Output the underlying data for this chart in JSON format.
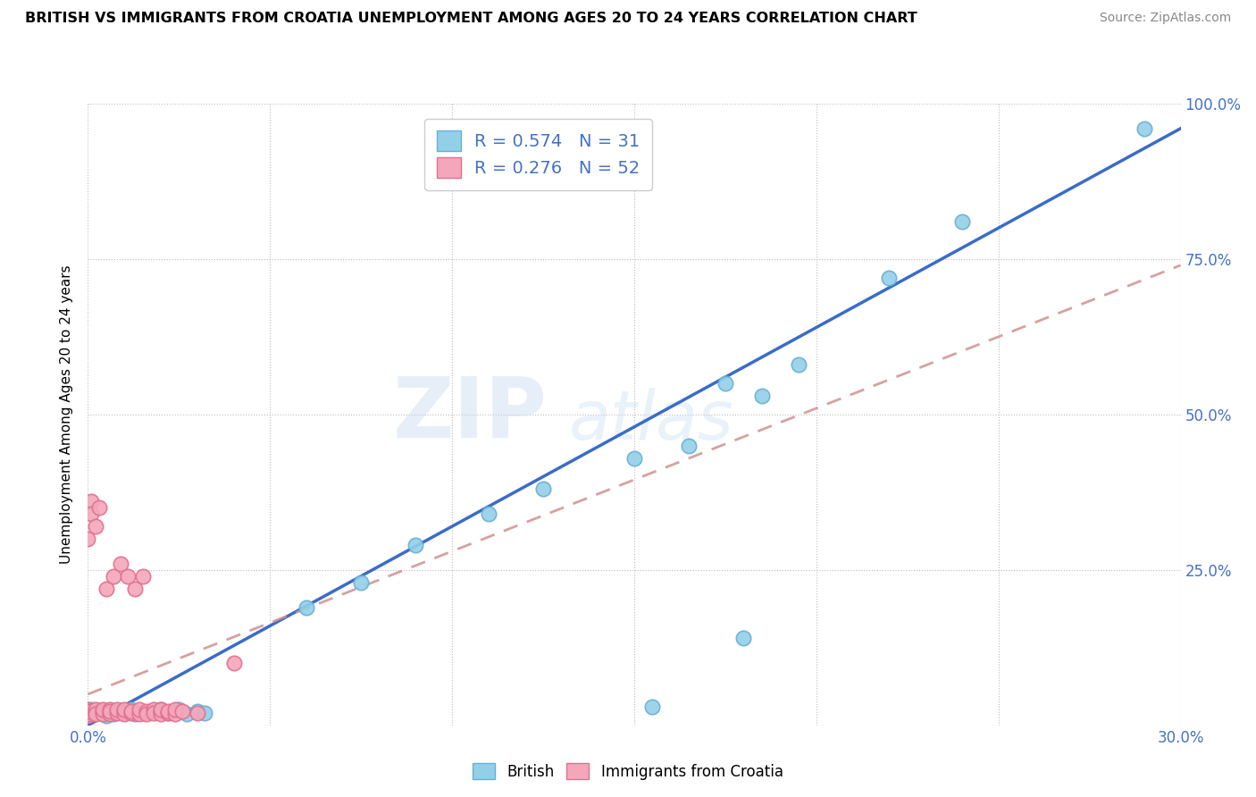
{
  "title": "BRITISH VS IMMIGRANTS FROM CROATIA UNEMPLOYMENT AMONG AGES 20 TO 24 YEARS CORRELATION CHART",
  "source": "Source: ZipAtlas.com",
  "ylabel": "Unemployment Among Ages 20 to 24 years",
  "x_min": 0.0,
  "x_max": 0.3,
  "y_min": 0.0,
  "y_max": 1.0,
  "x_ticks": [
    0.0,
    0.05,
    0.1,
    0.15,
    0.2,
    0.25,
    0.3
  ],
  "x_tick_labels": [
    "0.0%",
    "",
    "",
    "",
    "",
    "",
    "30.0%"
  ],
  "y_ticks": [
    0.0,
    0.25,
    0.5,
    0.75,
    1.0
  ],
  "y_tick_labels": [
    "",
    "25.0%",
    "50.0%",
    "75.0%",
    "100.0%"
  ],
  "british_color": "#92D0E8",
  "croatia_color": "#F4A7BA",
  "british_edge_color": "#6AAED6",
  "croatia_edge_color": "#E07090",
  "trend_british_color": "#3A6CC8",
  "trend_croatia_color": "#D09090",
  "R_british": 0.574,
  "N_british": 31,
  "R_croatia": 0.276,
  "N_croatia": 52,
  "legend_label_british": "British",
  "legend_label_croatia": "Immigrants from Croatia",
  "watermark_zip": "ZIP",
  "watermark_atlas": "atlas",
  "british_x": [
    0.001,
    0.003,
    0.005,
    0.007,
    0.008,
    0.01,
    0.012,
    0.013,
    0.015,
    0.018,
    0.02,
    0.022,
    0.025,
    0.027,
    0.03,
    0.032,
    0.06,
    0.075,
    0.09,
    0.11,
    0.125,
    0.15,
    0.165,
    0.175,
    0.185,
    0.195,
    0.22,
    0.24,
    0.155,
    0.18,
    0.29
  ],
  "british_y": [
    0.025,
    0.02,
    0.015,
    0.018,
    0.022,
    0.02,
    0.025,
    0.018,
    0.02,
    0.022,
    0.025,
    0.02,
    0.025,
    0.018,
    0.022,
    0.02,
    0.19,
    0.23,
    0.29,
    0.34,
    0.38,
    0.43,
    0.45,
    0.55,
    0.53,
    0.58,
    0.72,
    0.81,
    0.03,
    0.14,
    0.96
  ],
  "croatia_x": [
    0.0,
    0.0,
    0.0,
    0.0,
    0.0,
    0.0,
    0.0,
    0.0,
    0.002,
    0.002,
    0.002,
    0.004,
    0.004,
    0.004,
    0.006,
    0.006,
    0.006,
    0.006,
    0.008,
    0.008,
    0.01,
    0.01,
    0.01,
    0.012,
    0.012,
    0.014,
    0.014,
    0.016,
    0.016,
    0.018,
    0.018,
    0.02,
    0.02,
    0.02,
    0.022,
    0.022,
    0.024,
    0.024,
    0.026,
    0.03,
    0.0,
    0.001,
    0.001,
    0.002,
    0.003,
    0.005,
    0.007,
    0.009,
    0.011,
    0.013,
    0.015,
    0.04
  ],
  "croatia_y": [
    0.02,
    0.022,
    0.018,
    0.025,
    0.02,
    0.015,
    0.018,
    0.022,
    0.02,
    0.025,
    0.018,
    0.022,
    0.018,
    0.025,
    0.02,
    0.025,
    0.018,
    0.022,
    0.02,
    0.025,
    0.022,
    0.018,
    0.025,
    0.02,
    0.022,
    0.018,
    0.025,
    0.022,
    0.018,
    0.025,
    0.02,
    0.022,
    0.018,
    0.025,
    0.02,
    0.022,
    0.018,
    0.025,
    0.022,
    0.02,
    0.3,
    0.36,
    0.34,
    0.32,
    0.35,
    0.22,
    0.24,
    0.26,
    0.24,
    0.22,
    0.24,
    0.1
  ]
}
